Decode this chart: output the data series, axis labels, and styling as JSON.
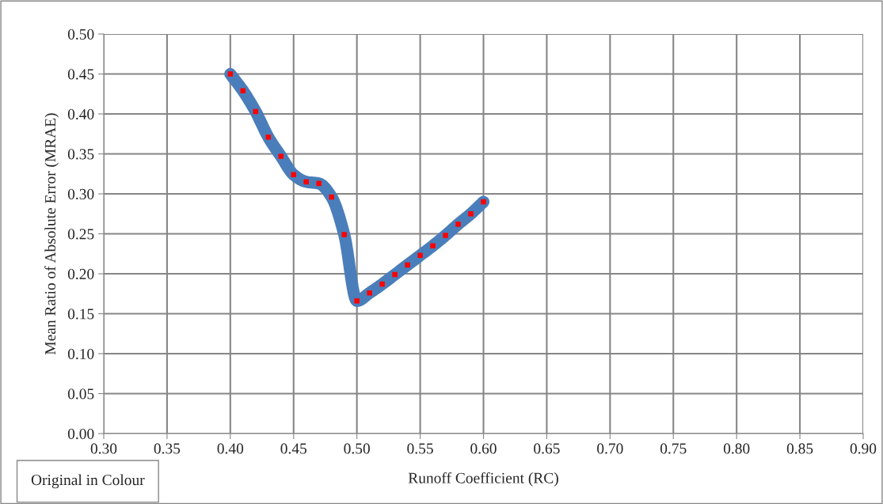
{
  "chart_data": {
    "type": "line",
    "xlabel": "Runoff Coefficient (RC)",
    "ylabel": "Mean Ratio of Absolute Error (MRAE)",
    "x": [
      0.4,
      0.41,
      0.42,
      0.43,
      0.44,
      0.45,
      0.46,
      0.47,
      0.48,
      0.49,
      0.5,
      0.51,
      0.52,
      0.53,
      0.54,
      0.55,
      0.56,
      0.57,
      0.58,
      0.59,
      0.6
    ],
    "series": [
      {
        "color": "#4a7ebb",
        "values": [
          0.45,
          0.429,
          0.403,
          0.371,
          0.347,
          0.324,
          0.315,
          0.313,
          0.296,
          0.249,
          0.166,
          0.176,
          0.187,
          0.199,
          0.211,
          0.223,
          0.235,
          0.248,
          0.262,
          0.275,
          0.29
        ]
      },
      {
        "type": "scatter",
        "color": "#ff0000",
        "marker": "square",
        "values": [
          0.45,
          0.429,
          0.403,
          0.371,
          0.347,
          0.324,
          0.315,
          0.313,
          0.296,
          0.249,
          0.166,
          0.176,
          0.187,
          0.199,
          0.211,
          0.223,
          0.235,
          0.248,
          0.262,
          0.275,
          0.29
        ]
      }
    ],
    "xlim": [
      0.3,
      0.9
    ],
    "xticks": [
      {
        "value": 0.3,
        "label": "0.30"
      },
      {
        "value": 0.35,
        "label": "0.35"
      },
      {
        "value": 0.4,
        "label": "0.40"
      },
      {
        "value": 0.45,
        "label": "0.45"
      },
      {
        "value": 0.5,
        "label": "0.50"
      },
      {
        "value": 0.55,
        "label": "0.55"
      },
      {
        "value": 0.6,
        "label": "0.60"
      },
      {
        "value": 0.65,
        "label": "0.65"
      },
      {
        "value": 0.7,
        "label": "0.70"
      },
      {
        "value": 0.75,
        "label": "0.75"
      },
      {
        "value": 0.8,
        "label": "0.80"
      },
      {
        "value": 0.85,
        "label": "0.85"
      },
      {
        "value": 0.9,
        "label": "0.90"
      }
    ],
    "ylim": [
      0.0,
      0.5
    ],
    "yticks": [
      {
        "value": 0.0,
        "label": "0.00"
      },
      {
        "value": 0.05,
        "label": "0.05"
      },
      {
        "value": 0.1,
        "label": "0.10"
      },
      {
        "value": 0.15,
        "label": "0.15"
      },
      {
        "value": 0.2,
        "label": "0.20"
      },
      {
        "value": 0.25,
        "label": "0.25"
      },
      {
        "value": 0.3,
        "label": "0.30"
      },
      {
        "value": 0.35,
        "label": "0.35"
      },
      {
        "value": 0.4,
        "label": "0.40"
      },
      {
        "value": 0.45,
        "label": "0.45"
      },
      {
        "value": 0.5,
        "label": "0.50"
      }
    ],
    "grid": true,
    "annotations": [
      "Original in Colour"
    ]
  }
}
